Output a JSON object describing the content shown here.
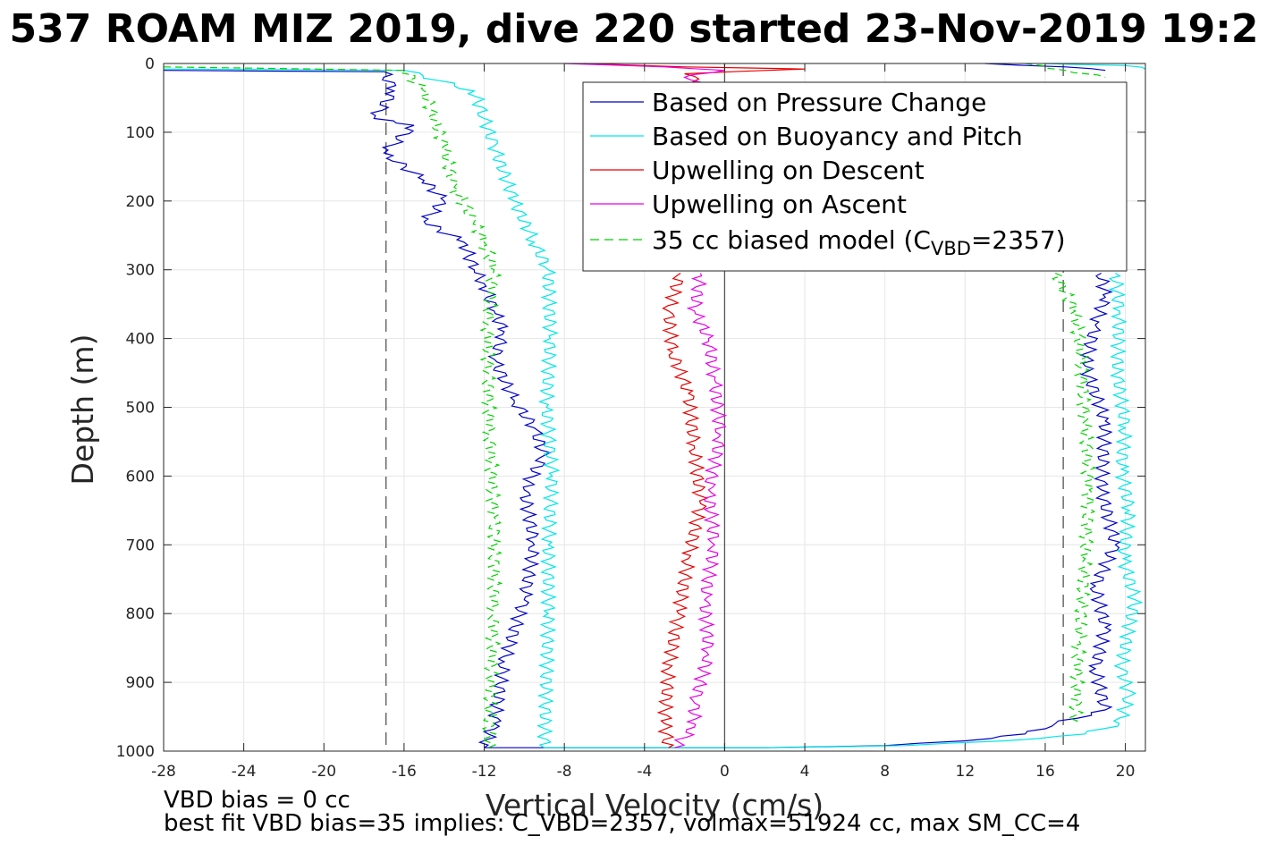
{
  "chart_data": {
    "type": "line",
    "title": "537 ROAM MIZ 2019, dive 220 started 23-Nov-2019 19:2",
    "xlabel": "Vertical Velocity (cm/s)",
    "ylabel": "Depth (m)",
    "xlim": [
      -28,
      21
    ],
    "ylim": [
      1000,
      0
    ],
    "y_reversed": true,
    "x_ticks": [
      "-28",
      "-24",
      "-20",
      "-16",
      "-12",
      "-8",
      "-4",
      "0",
      "4",
      "8",
      "12",
      "16",
      "20"
    ],
    "x_tick_values": [
      -28,
      -24,
      -20,
      -16,
      -12,
      -8,
      -4,
      0,
      4,
      8,
      12,
      16,
      20
    ],
    "y_ticks": [
      "0",
      "100",
      "200",
      "300",
      "400",
      "500",
      "600",
      "700",
      "800",
      "900",
      "1000"
    ],
    "y_tick_values": [
      0,
      100,
      200,
      300,
      400,
      500,
      600,
      700,
      800,
      900,
      1000
    ],
    "grid": true,
    "legend_position": "top-right",
    "reference_lines": [
      {
        "style": "dashed",
        "color": "#555555",
        "x": -16.9
      },
      {
        "style": "dashed",
        "color": "#555555",
        "x": 16.9
      },
      {
        "style": "solid",
        "color": "#555555",
        "x": 0
      }
    ],
    "series": [
      {
        "name": "Based on Pressure Change",
        "color": "#0000c8",
        "style": "solid",
        "segments": [
          {
            "x": [
              -28,
              -17,
              -16.5,
              -17.5,
              -15.5,
              -17,
              -15,
              -14,
              -15,
              -13,
              -12.5,
              -12,
              -11.5,
              -11,
              -11.5,
              -10.5,
              -9.5,
              -9,
              -10,
              -9.5,
              -10,
              -11,
              -11.5,
              -12
            ],
            "y": [
              10,
              12,
              40,
              80,
              90,
              130,
              170,
              200,
              230,
              260,
              300,
              320,
              360,
              390,
              430,
              490,
              530,
              570,
              620,
              700,
              780,
              870,
              960,
              995
            ]
          },
          {
            "x": [
              -12,
              2,
              8,
              12,
              15,
              16.5
            ],
            "y": [
              995,
              995,
              992,
              985,
              975,
              960
            ]
          },
          {
            "x": [
              16.5,
              19,
              18.5,
              19,
              18.5,
              19.5,
              18.8,
              19,
              18,
              18.5,
              19,
              18.8
            ],
            "y": [
              960,
              940,
              880,
              820,
              760,
              700,
              620,
              520,
              440,
              380,
              340,
              305
            ]
          },
          {
            "x": [
              13,
              17,
              19
            ],
            "y": [
              0,
              5,
              10
            ]
          }
        ]
      },
      {
        "name": "Based on Buoyancy and Pitch",
        "color": "#00e6e6",
        "style": "solid",
        "segments": [
          {
            "x": [
              -28,
              -16,
              -12.5,
              -12,
              -11.5,
              -10.5,
              -9.5,
              -8.8,
              -8.7,
              -8.9,
              -8.6,
              -8.8,
              -8.8,
              -9
            ],
            "y": [
              8,
              10,
              40,
              80,
              120,
              200,
              260,
              300,
              400,
              500,
              600,
              700,
              800,
              995
            ]
          },
          {
            "x": [
              -9,
              2,
              9,
              14,
              18,
              19.7
            ],
            "y": [
              995,
              995,
              992,
              985,
              975,
              960
            ]
          },
          {
            "x": [
              19.7,
              20.2,
              19.8,
              20.1,
              20.5,
              19.9,
              20.2,
              19.8,
              20,
              19.6,
              19.7,
              19.5
            ],
            "y": [
              960,
              920,
              880,
              830,
              780,
              720,
              650,
              590,
              530,
              450,
              360,
              305
            ]
          },
          {
            "x": [
              16,
              20,
              21
            ],
            "y": [
              0,
              3,
              8
            ]
          }
        ]
      },
      {
        "name": "Upwelling on Descent",
        "color": "#e60000",
        "style": "solid",
        "segments": [
          {
            "x": [
              -2.2,
              -2.8,
              -2.6,
              -1.8,
              -1.5,
              -1.2,
              -1.8,
              -2.3,
              -2.8,
              -3,
              -2.8
            ],
            "y": [
              305,
              360,
              420,
              480,
              560,
              640,
              720,
              800,
              880,
              960,
              995
            ]
          },
          {
            "x": [
              -7,
              -2,
              4,
              -2,
              -1
            ],
            "y": [
              0,
              5,
              8,
              15,
              30
            ]
          }
        ]
      },
      {
        "name": "Upwelling on Ascent",
        "color": "#e600e6",
        "style": "solid",
        "segments": [
          {
            "x": [
              -1.2,
              -1.5,
              -0.8,
              -0.5,
              -0.2,
              -0.8,
              -0.5,
              -1,
              -0.8,
              -1.5,
              -1.5,
              -2.5
            ],
            "y": [
              305,
              360,
              400,
              460,
              540,
              620,
              700,
              780,
              860,
              930,
              965,
              995
            ]
          },
          {
            "x": [
              -8,
              -3,
              0,
              -2,
              -1
            ],
            "y": [
              0,
              5,
              10,
              20,
              35
            ]
          }
        ]
      },
      {
        "name": "35 cc biased model",
        "color": "#00d200",
        "style": "dashed",
        "segments": [
          {
            "x": [
              -28,
              -16,
              -15,
              -14,
              -13.5,
              -12.5,
              -12,
              -11.5,
              -11.8,
              -11.8,
              -11.7,
              -11.5,
              -11.5,
              -11.8
            ],
            "y": [
              5,
              10,
              40,
              120,
              180,
              230,
              260,
              300,
              380,
              450,
              540,
              660,
              800,
              995
            ]
          },
          {
            "x": [
              16.5,
              17.5,
              17.8,
              18,
              18.2,
              18,
              17.7,
              17.5
            ],
            "y": [
              305,
              360,
              430,
              520,
              620,
              720,
              840,
              960
            ]
          },
          {
            "x": [
              15,
              17,
              19
            ],
            "y": [
              0,
              10,
              20
            ]
          }
        ]
      }
    ]
  },
  "legend": {
    "items": [
      {
        "label": "Based on Pressure Change",
        "color": "#0000c8",
        "dash": false
      },
      {
        "label": "Based on Buoyancy and Pitch",
        "color": "#00e6e6",
        "dash": false
      },
      {
        "label": "Upwelling on Descent",
        "color": "#e60000",
        "dash": false
      },
      {
        "label": "Upwelling on Ascent",
        "color": "#e600e6",
        "dash": false
      }
    ],
    "model_item": {
      "label_prefix": "35 cc biased model (C",
      "label_subscript": "VBD",
      "label_suffix": "=2357)",
      "color": "#00d200",
      "dash": true
    }
  },
  "footer": {
    "line1": "VBD bias = 0 cc",
    "line2": "best fit VBD bias=35 implies: C_VBD=2357, volmax=51924 cc, max SM_CC=4"
  }
}
